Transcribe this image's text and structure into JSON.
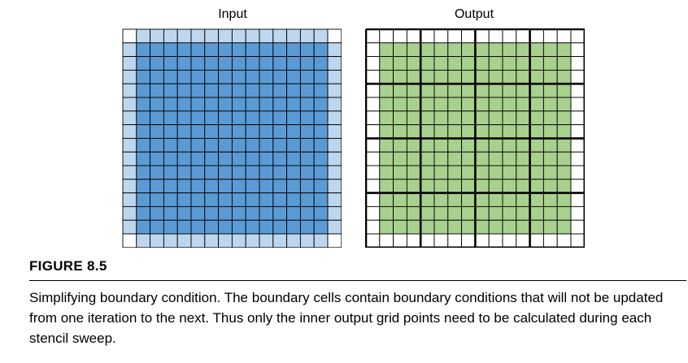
{
  "figure": {
    "label": "FIGURE 8.5",
    "caption": "Simplifying boundary condition. The boundary cells contain boundary conditions that will not be updated from one iteration to the next. Thus only the inner output grid points need to be calculated during each stencil sweep."
  },
  "input_grid": {
    "title": "Input",
    "cols": 16,
    "rows": 16,
    "boundary_color": "#bdd7ee",
    "inner_color": "#5b9bd5",
    "corner_color": "#ffffff"
  },
  "output_grid": {
    "title": "Output",
    "cols": 16,
    "rows": 16,
    "boundary_color": "#ffffff",
    "inner_color": "#a9d18e",
    "tile_size": 4
  },
  "colors": {
    "line": "#000000"
  }
}
